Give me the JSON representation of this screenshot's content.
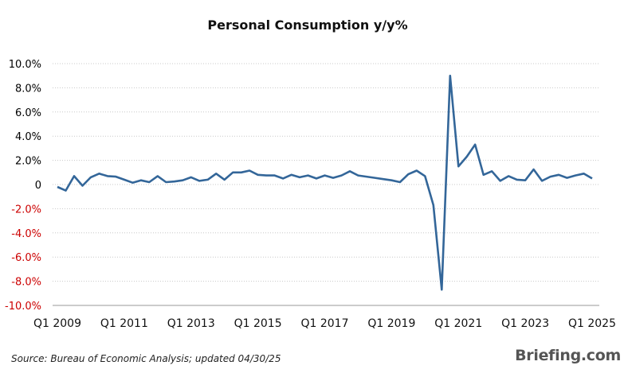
{
  "colors": {
    "line": "#336699",
    "negative_tick": "#cc0000",
    "positive_tick": "#000000",
    "grid": "#c8c8c8"
  },
  "chart_data": {
    "type": "line",
    "title": "Personal Consumption y/y%",
    "xlabel": "",
    "ylabel": "",
    "ylim": [
      -10,
      10
    ],
    "yticks": [
      "10.0%",
      "8.0%",
      "6.0%",
      "4.0%",
      "2.0%",
      "0",
      "-2.0%",
      "-4.0%",
      "-6.0%",
      "-8.0%",
      "-10.0%"
    ],
    "ytick_values": [
      10,
      8,
      6,
      4,
      2,
      0,
      -2,
      -4,
      -6,
      -8,
      -10
    ],
    "xticks": [
      "Q1 2009",
      "Q1 2011",
      "Q1 2013",
      "Q1 2015",
      "Q1 2017",
      "Q1 2019",
      "Q1 2021",
      "Q1 2023",
      "Q1 2025"
    ],
    "grid": "horizontal",
    "x": [
      "Q1 2009",
      "Q2 2009",
      "Q3 2009",
      "Q4 2009",
      "Q1 2010",
      "Q2 2010",
      "Q3 2010",
      "Q4 2010",
      "Q1 2011",
      "Q2 2011",
      "Q3 2011",
      "Q4 2011",
      "Q1 2012",
      "Q2 2012",
      "Q3 2012",
      "Q4 2012",
      "Q1 2013",
      "Q2 2013",
      "Q3 2013",
      "Q4 2013",
      "Q1 2014",
      "Q2 2014",
      "Q3 2014",
      "Q4 2014",
      "Q1 2015",
      "Q2 2015",
      "Q3 2015",
      "Q4 2015",
      "Q1 2016",
      "Q2 2016",
      "Q3 2016",
      "Q4 2016",
      "Q1 2017",
      "Q2 2017",
      "Q3 2017",
      "Q4 2017",
      "Q1 2018",
      "Q2 2018",
      "Q3 2018",
      "Q4 2018",
      "Q1 2019",
      "Q2 2019",
      "Q3 2019",
      "Q4 2019",
      "Q1 2020",
      "Q2 2020",
      "Q3 2020",
      "Q4 2020",
      "Q1 2021",
      "Q2 2021",
      "Q3 2021",
      "Q4 2021",
      "Q1 2022",
      "Q2 2022",
      "Q3 2022",
      "Q4 2022",
      "Q1 2023",
      "Q2 2023",
      "Q3 2023",
      "Q4 2023",
      "Q1 2024",
      "Q2 2024",
      "Q3 2024",
      "Q4 2024",
      "Q1 2025"
    ],
    "series": [
      {
        "values": [
          -0.2,
          -0.5,
          0.7,
          -0.1,
          0.6,
          0.9,
          0.7,
          0.65,
          0.4,
          0.15,
          0.35,
          0.2,
          0.7,
          0.2,
          0.25,
          0.35,
          0.6,
          0.3,
          0.4,
          0.9,
          0.4,
          1.0,
          1.0,
          1.15,
          0.8,
          0.75,
          0.75,
          0.5,
          0.8,
          0.6,
          0.75,
          0.5,
          0.75,
          0.55,
          0.75,
          1.1,
          0.75,
          0.65,
          0.55,
          0.45,
          0.35,
          0.2,
          0.85,
          1.15,
          0.7,
          -1.7,
          -8.7,
          9.0,
          1.5,
          2.3,
          3.3,
          0.8,
          1.1,
          0.3,
          0.7,
          0.4,
          0.35,
          1.25,
          0.3,
          0.65,
          0.8,
          0.55,
          0.75,
          0.9,
          0.5
        ]
      }
    ]
  },
  "footer": {
    "source": "Source: Bureau of Economic Analysis; updated 04/30/25",
    "logo": "Briefing.com"
  }
}
